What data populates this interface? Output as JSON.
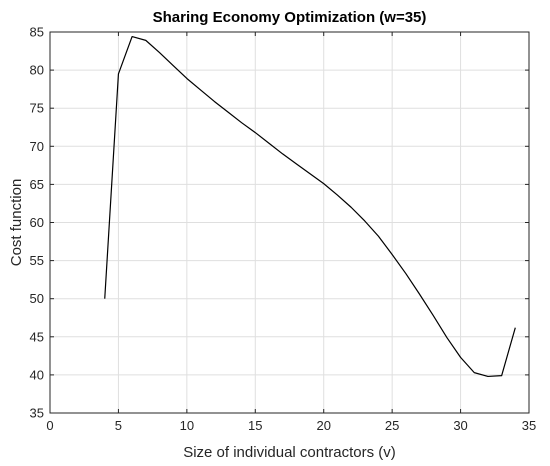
{
  "chart_data": {
    "type": "line",
    "title": "Sharing Economy Optimization (w=35)",
    "xlabel": "Size of individual contractors (v)",
    "ylabel": "Cost function",
    "xlim": [
      0,
      35
    ],
    "ylim": [
      35,
      85
    ],
    "xticks": [
      0,
      5,
      10,
      15,
      20,
      25,
      30,
      35
    ],
    "yticks": [
      35,
      40,
      45,
      50,
      55,
      60,
      65,
      70,
      75,
      80,
      85
    ],
    "grid": true,
    "series": [
      {
        "x": [
          4,
          5,
          6,
          7,
          8,
          9,
          10,
          11,
          12,
          13,
          14,
          15,
          16,
          17,
          18,
          19,
          20,
          21,
          22,
          23,
          24,
          25,
          26,
          27,
          28,
          29,
          30,
          31,
          32,
          33,
          34
        ],
        "values": [
          50.0,
          79.5,
          84.4,
          83.9,
          82.3,
          80.6,
          78.9,
          77.4,
          75.9,
          74.5,
          73.1,
          71.8,
          70.4,
          69.0,
          67.7,
          66.4,
          65.1,
          63.6,
          62.0,
          60.2,
          58.2,
          55.8,
          53.3,
          50.6,
          47.8,
          44.9,
          42.3,
          40.3,
          39.8,
          39.9,
          46.2
        ],
        "color": "#000000"
      }
    ]
  }
}
